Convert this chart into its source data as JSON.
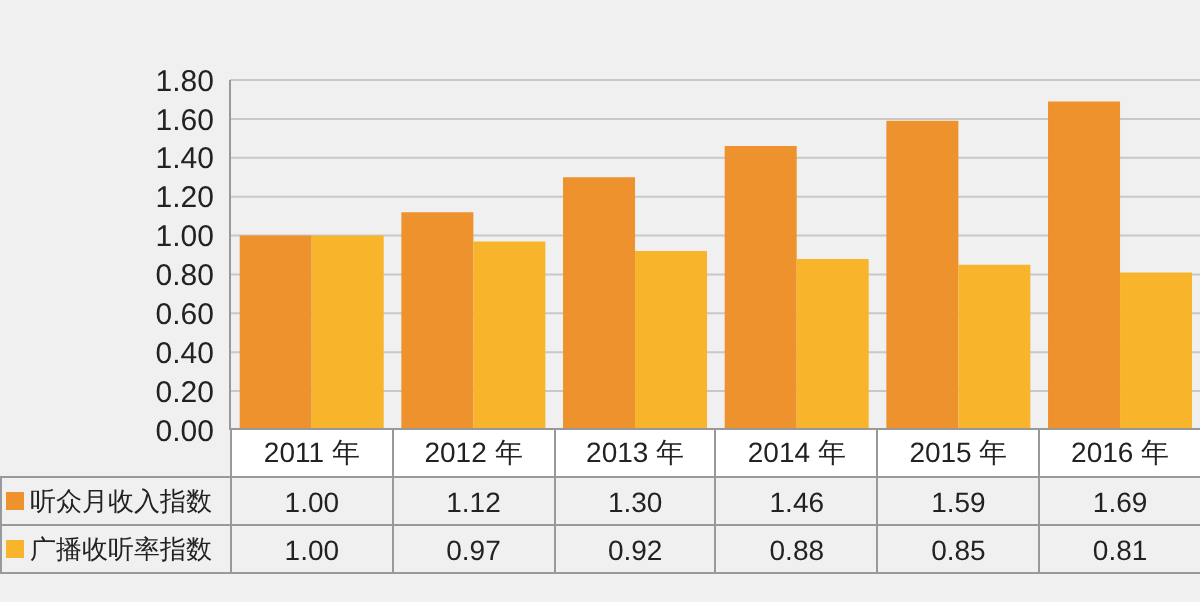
{
  "chart_data": {
    "type": "bar",
    "categories": [
      "2011 年",
      "2012 年",
      "2013 年",
      "2014 年",
      "2015 年",
      "2016 年"
    ],
    "series": [
      {
        "name": "听众月收入指数",
        "color": "#ee922d",
        "values": [
          1.0,
          1.12,
          1.3,
          1.46,
          1.59,
          1.69
        ],
        "value_labels": [
          "1.00",
          "1.12",
          "1.30",
          "1.46",
          "1.59",
          "1.69"
        ]
      },
      {
        "name": "广播收听率指数",
        "color": "#f8b52c",
        "values": [
          1.0,
          0.97,
          0.92,
          0.88,
          0.85,
          0.81
        ],
        "value_labels": [
          "1.00",
          "0.97",
          "0.92",
          "0.88",
          "0.85",
          "0.81"
        ]
      }
    ],
    "ylim": [
      0,
      1.8
    ],
    "yticks": [
      {
        "value": 0,
        "label": "0.00"
      },
      {
        "value": 0.2,
        "label": "0.20"
      },
      {
        "value": 0.4,
        "label": "0.40"
      },
      {
        "value": 0.6,
        "label": "0.60"
      },
      {
        "value": 0.8,
        "label": "0.80"
      },
      {
        "value": 1.0,
        "label": "1.00"
      },
      {
        "value": 1.2,
        "label": "1.20"
      },
      {
        "value": 1.4,
        "label": "1.40"
      },
      {
        "value": 1.6,
        "label": "1.60"
      },
      {
        "value": 1.8,
        "label": "1.80"
      }
    ],
    "grid": "y",
    "legend": "bottom"
  }
}
